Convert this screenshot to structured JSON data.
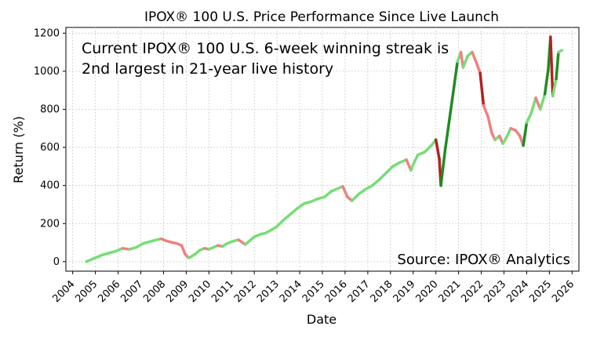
{
  "chart_data": {
    "type": "line",
    "title": "IPOX® 100 U.S. Price Performance Since Live Launch",
    "xlabel": "Date",
    "ylabel": "Return (%)",
    "annotation_main": [
      "Current IPOX® 100 U.S. 6-week winning streak is",
      "2nd largest in 21-year live history"
    ],
    "annotation_source": "Source: IPOX® Analytics",
    "xlim": [
      2003.7,
      2026.3
    ],
    "ylim": [
      -50,
      1230
    ],
    "x_ticks": [
      2004,
      2005,
      2006,
      2007,
      2008,
      2009,
      2010,
      2011,
      2012,
      2013,
      2014,
      2015,
      2016,
      2017,
      2018,
      2019,
      2020,
      2021,
      2022,
      2023,
      2024,
      2025,
      2026
    ],
    "y_ticks": [
      0,
      200,
      400,
      600,
      800,
      1000,
      1200
    ],
    "grid": true,
    "colors": {
      "up": "#77dd77",
      "down": "#f08080",
      "highlight": "#228b22",
      "drawdown": "#b22222",
      "grid": "#cccccc"
    },
    "series": [
      {
        "name": "IPOX 100 U.S. Return",
        "x": [
          2004.6,
          2004.8,
          2005.0,
          2005.3,
          2005.6,
          2005.9,
          2006.2,
          2006.5,
          2006.8,
          2007.1,
          2007.4,
          2007.7,
          2007.9,
          2008.1,
          2008.4,
          2008.6,
          2008.8,
          2008.95,
          2009.1,
          2009.2,
          2009.4,
          2009.6,
          2009.8,
          2010.0,
          2010.2,
          2010.4,
          2010.6,
          2010.8,
          2011.0,
          2011.3,
          2011.6,
          2011.8,
          2012.0,
          2012.3,
          2012.5,
          2012.8,
          2013.0,
          2013.3,
          2013.6,
          2013.9,
          2014.2,
          2014.5,
          2014.8,
          2015.1,
          2015.4,
          2015.7,
          2015.9,
          2016.1,
          2016.3,
          2016.6,
          2016.9,
          2017.2,
          2017.5,
          2017.8,
          2018.1,
          2018.4,
          2018.7,
          2018.9,
          2019.0,
          2019.2,
          2019.5,
          2019.8,
          2020.0,
          2020.15,
          2020.22,
          2020.4,
          2020.6,
          2020.8,
          2020.95,
          2021.1,
          2021.2,
          2021.4,
          2021.6,
          2021.8,
          2021.95,
          2022.1,
          2022.3,
          2022.45,
          2022.6,
          2022.8,
          2022.95,
          2023.1,
          2023.3,
          2023.5,
          2023.7,
          2023.85,
          2024.0,
          2024.2,
          2024.4,
          2024.6,
          2024.8,
          2024.95,
          2025.05,
          2025.15,
          2025.3,
          2025.4,
          2025.55
        ],
        "values": [
          0,
          10,
          20,
          35,
          45,
          55,
          70,
          65,
          75,
          95,
          105,
          115,
          120,
          110,
          100,
          95,
          85,
          40,
          20,
          25,
          40,
          60,
          70,
          65,
          75,
          85,
          80,
          95,
          105,
          115,
          90,
          110,
          130,
          145,
          150,
          170,
          185,
          220,
          250,
          280,
          305,
          315,
          330,
          340,
          370,
          385,
          395,
          340,
          320,
          355,
          380,
          400,
          430,
          465,
          500,
          520,
          535,
          480,
          510,
          560,
          575,
          610,
          640,
          540,
          400,
          580,
          750,
          920,
          1050,
          1100,
          1020,
          1080,
          1100,
          1040,
          990,
          820,
          760,
          680,
          640,
          660,
          620,
          650,
          700,
          690,
          660,
          610,
          730,
          780,
          860,
          800,
          880,
          1010,
          1180,
          870,
          960,
          1100,
          1110
        ]
      }
    ]
  }
}
